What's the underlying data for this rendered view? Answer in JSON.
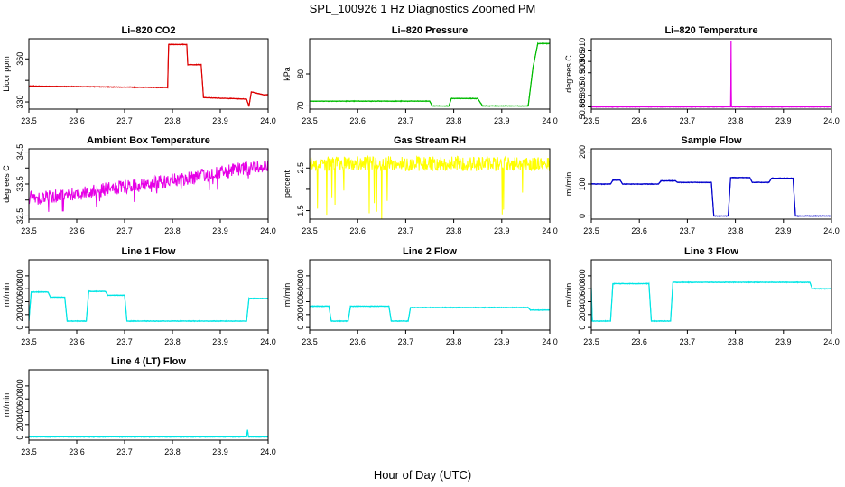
{
  "figure": {
    "title": "SPL_100926  1 Hz Diagnostics Zoomed PM",
    "xlabel": "Hour of Day (UTC)"
  },
  "chart_data": [
    {
      "type": "line",
      "title": "Li–820 CO2",
      "ylabel": "Licor ppm",
      "xlim": [
        23.5,
        24.0
      ],
      "ylim": [
        325,
        374
      ],
      "xticks": [
        "23.5",
        "23.6",
        "23.7",
        "23.8",
        "23.9",
        "24.0"
      ],
      "yticks": [
        330,
        360
      ],
      "yticks_minor": [
        345
      ],
      "color": "#dd0000",
      "series": [
        {
          "x": [
            23.5,
            23.79,
            23.792,
            23.83,
            23.832,
            23.86,
            23.865,
            23.955,
            23.96,
            23.965,
            23.99,
            24.0
          ],
          "y": [
            341,
            340,
            370,
            370,
            356,
            356,
            333,
            332,
            327,
            337,
            335,
            335
          ]
        }
      ]
    },
    {
      "type": "line",
      "title": "Li–820 Pressure",
      "ylabel": "kPa",
      "xlim": [
        23.5,
        24.0
      ],
      "ylim": [
        69,
        91
      ],
      "xticks": [
        "23.5",
        "23.6",
        "23.7",
        "23.8",
        "23.9",
        "24.0"
      ],
      "yticks": [
        70,
        80
      ],
      "color": "#00bb00",
      "series": [
        {
          "x": [
            23.5,
            23.75,
            23.755,
            23.79,
            23.795,
            23.85,
            23.86,
            23.955,
            23.965,
            23.975,
            24.0
          ],
          "y": [
            71.5,
            71.5,
            70.0,
            70.0,
            72.3,
            72.3,
            70.0,
            70.0,
            82.0,
            89.5,
            89.5
          ]
        }
      ]
    },
    {
      "type": "line",
      "title": "Li–820 Temperature",
      "ylabel": "degrees C",
      "xlim": [
        23.5,
        24.0
      ],
      "ylim": [
        50.884,
        50.915
      ],
      "xticks": [
        "23.5",
        "23.6",
        "23.7",
        "23.8",
        "23.9",
        "24.0"
      ],
      "yticks": [
        "50.885",
        "50.890",
        "50.900",
        "50.905",
        "50.910"
      ],
      "ytick_values": [
        50.885,
        50.89,
        50.9,
        50.905,
        50.91
      ],
      "color": "#e600e6",
      "series": [
        {
          "x": [
            23.5,
            23.7905,
            23.791,
            23.7915,
            24.0
          ],
          "y": [
            50.885,
            50.885,
            50.914,
            50.885,
            50.885
          ]
        }
      ]
    },
    {
      "type": "line",
      "title": "Ambient Box Temperature",
      "ylabel": "degrees C",
      "xlim": [
        23.5,
        24.0
      ],
      "ylim": [
        32.4,
        34.6
      ],
      "xticks": [
        "23.5",
        "23.6",
        "23.7",
        "23.8",
        "23.9",
        "24.0"
      ],
      "yticks": [
        "32.5",
        "33.5",
        "34.5"
      ],
      "ytick_values": [
        32.5,
        33.5,
        34.5
      ],
      "yticks_minor": [
        33.0,
        34.0
      ],
      "color": "#e600e6",
      "series": [
        {
          "x": [
            23.5,
            23.6,
            23.7,
            23.8,
            23.9,
            24.0
          ],
          "y": [
            33.05,
            33.2,
            33.4,
            33.6,
            33.85,
            34.1
          ]
        }
      ]
    },
    {
      "type": "line",
      "title": "Gas Stream RH",
      "ylabel": "percent",
      "xlim": [
        23.5,
        24.0
      ],
      "ylim": [
        1.3,
        2.95
      ],
      "xticks": [
        "23.5",
        "23.6",
        "23.7",
        "23.8",
        "23.9",
        "24.0"
      ],
      "yticks": [
        "1.5",
        "2.5"
      ],
      "ytick_values": [
        1.5,
        2.5
      ],
      "yticks_minor": [
        2.0
      ],
      "color": "#ffff00",
      "series": [
        {
          "x": [
            23.5,
            24.0
          ],
          "y": [
            2.6,
            2.6
          ]
        }
      ]
    },
    {
      "type": "line",
      "title": "Sample Flow",
      "ylabel": "ml/min",
      "xlim": [
        23.5,
        24.0
      ],
      "ylim": [
        -10,
        210
      ],
      "xticks": [
        "23.5",
        "23.6",
        "23.7",
        "23.8",
        "23.9",
        "24.0"
      ],
      "yticks": [
        0,
        100,
        200
      ],
      "color": "#0000cc",
      "series": [
        {
          "x": [
            23.5,
            23.54,
            23.545,
            23.56,
            23.565,
            23.64,
            23.645,
            23.675,
            23.68,
            23.75,
            23.755,
            23.785,
            23.79,
            23.83,
            23.835,
            23.87,
            23.875,
            23.92,
            23.925,
            24.0
          ],
          "y": [
            100,
            100,
            112,
            112,
            100,
            100,
            110,
            110,
            105,
            105,
            0,
            0,
            120,
            120,
            105,
            105,
            118,
            118,
            0,
            0
          ]
        }
      ]
    },
    {
      "type": "line",
      "title": "Line 1 Flow",
      "ylabel": "ml/min",
      "xlim": [
        23.5,
        24.0
      ],
      "ylim": [
        -40,
        1050
      ],
      "xticks": [
        "23.5",
        "23.6",
        "23.7",
        "23.8",
        "23.9",
        "24.0"
      ],
      "yticks": [
        0,
        200,
        400,
        600,
        800
      ],
      "color": "#00e5e5",
      "series": [
        {
          "x": [
            23.5,
            23.505,
            23.54,
            23.545,
            23.575,
            23.58,
            23.62,
            23.625,
            23.66,
            23.665,
            23.7,
            23.705,
            23.955,
            23.96,
            24.0
          ],
          "y": [
            100,
            550,
            550,
            470,
            470,
            100,
            100,
            560,
            560,
            500,
            500,
            100,
            100,
            450,
            450
          ]
        }
      ]
    },
    {
      "type": "line",
      "title": "Line 2 Flow",
      "ylabel": "ml/min",
      "xlim": [
        23.5,
        24.0
      ],
      "ylim": [
        -40,
        1050
      ],
      "xticks": [
        "23.5",
        "23.6",
        "23.7",
        "23.8",
        "23.9",
        "24.0"
      ],
      "yticks": [
        0,
        200,
        400,
        600,
        800
      ],
      "color": "#00e5e5",
      "series": [
        {
          "x": [
            23.5,
            23.54,
            23.545,
            23.58,
            23.585,
            23.665,
            23.67,
            23.705,
            23.71,
            23.955,
            23.96,
            24.0
          ],
          "y": [
            330,
            330,
            100,
            100,
            330,
            330,
            100,
            100,
            310,
            310,
            270,
            270
          ]
        }
      ]
    },
    {
      "type": "line",
      "title": "Line 3 Flow",
      "ylabel": "ml/min",
      "xlim": [
        23.5,
        24.0
      ],
      "ylim": [
        -40,
        1050
      ],
      "xticks": [
        "23.5",
        "23.6",
        "23.7",
        "23.8",
        "23.9",
        "24.0"
      ],
      "yticks": [
        0,
        200,
        400,
        600,
        800
      ],
      "color": "#00e5e5",
      "series": [
        {
          "x": [
            23.5,
            23.502,
            23.505,
            23.54,
            23.545,
            23.62,
            23.625,
            23.665,
            23.67,
            23.955,
            23.96,
            24.0
          ],
          "y": [
            620,
            100,
            100,
            100,
            680,
            680,
            100,
            100,
            700,
            700,
            600,
            600
          ]
        }
      ]
    },
    {
      "type": "line",
      "title": "Line 4 (LT) Flow",
      "ylabel": "ml/min",
      "xlim": [
        23.5,
        24.0
      ],
      "ylim": [
        -40,
        1050
      ],
      "xticks": [
        "23.5",
        "23.6",
        "23.7",
        "23.8",
        "23.9",
        "24.0"
      ],
      "yticks": [
        0,
        200,
        400,
        600,
        800
      ],
      "color": "#00e5e5",
      "series": [
        {
          "x": [
            23.5,
            23.955,
            23.957,
            23.959,
            23.961,
            24.0
          ],
          "y": [
            10,
            10,
            120,
            10,
            10,
            10
          ]
        }
      ]
    }
  ]
}
